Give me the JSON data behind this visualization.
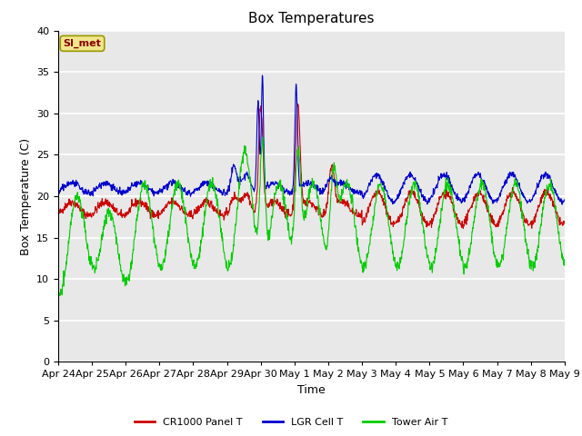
{
  "title": "Box Temperatures",
  "ylabel": "Box Temperature (C)",
  "xlabel": "Time",
  "ylim": [
    0,
    40
  ],
  "yticks": [
    0,
    5,
    10,
    15,
    20,
    25,
    30,
    35,
    40
  ],
  "outer_bg_color": "#ffffff",
  "plot_bg_color": "#e8e8e8",
  "legend_label": "SI_met",
  "series_labels": [
    "CR1000 Panel T",
    "LGR Cell T",
    "Tower Air T"
  ],
  "series_colors": [
    "#cc0000",
    "#0000cc",
    "#00cc00"
  ],
  "x_tick_labels": [
    "Apr 24",
    "Apr 25",
    "Apr 26",
    "Apr 27",
    "Apr 28",
    "Apr 29",
    "Apr 30",
    "May 1",
    "May 2",
    "May 3",
    "May 4",
    "May 5",
    "May 6",
    "May 7",
    "May 8",
    "May 9"
  ],
  "grid_color": "#ffffff",
  "title_fontsize": 11,
  "axis_fontsize": 9,
  "tick_fontsize": 8
}
